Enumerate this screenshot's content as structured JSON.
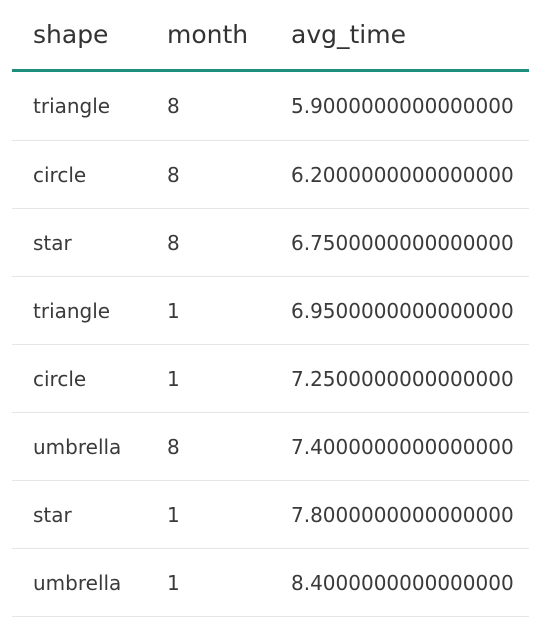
{
  "table": {
    "columns": [
      "shape",
      "month",
      "avg_time"
    ],
    "rows": [
      [
        "triangle",
        "8",
        "5.9000000000000000"
      ],
      [
        "circle",
        "8",
        "6.2000000000000000"
      ],
      [
        "star",
        "8",
        "6.7500000000000000"
      ],
      [
        "triangle",
        "1",
        "6.9500000000000000"
      ],
      [
        "circle",
        "1",
        "7.2500000000000000"
      ],
      [
        "umbrella",
        "8",
        "7.4000000000000000"
      ],
      [
        "star",
        "1",
        "7.8000000000000000"
      ],
      [
        "umbrella",
        "1",
        "8.4000000000000000"
      ]
    ]
  },
  "colors": {
    "header_rule": "#1e8f7c",
    "row_rule": "#e6e6e6",
    "text": "#3a3a3a"
  }
}
